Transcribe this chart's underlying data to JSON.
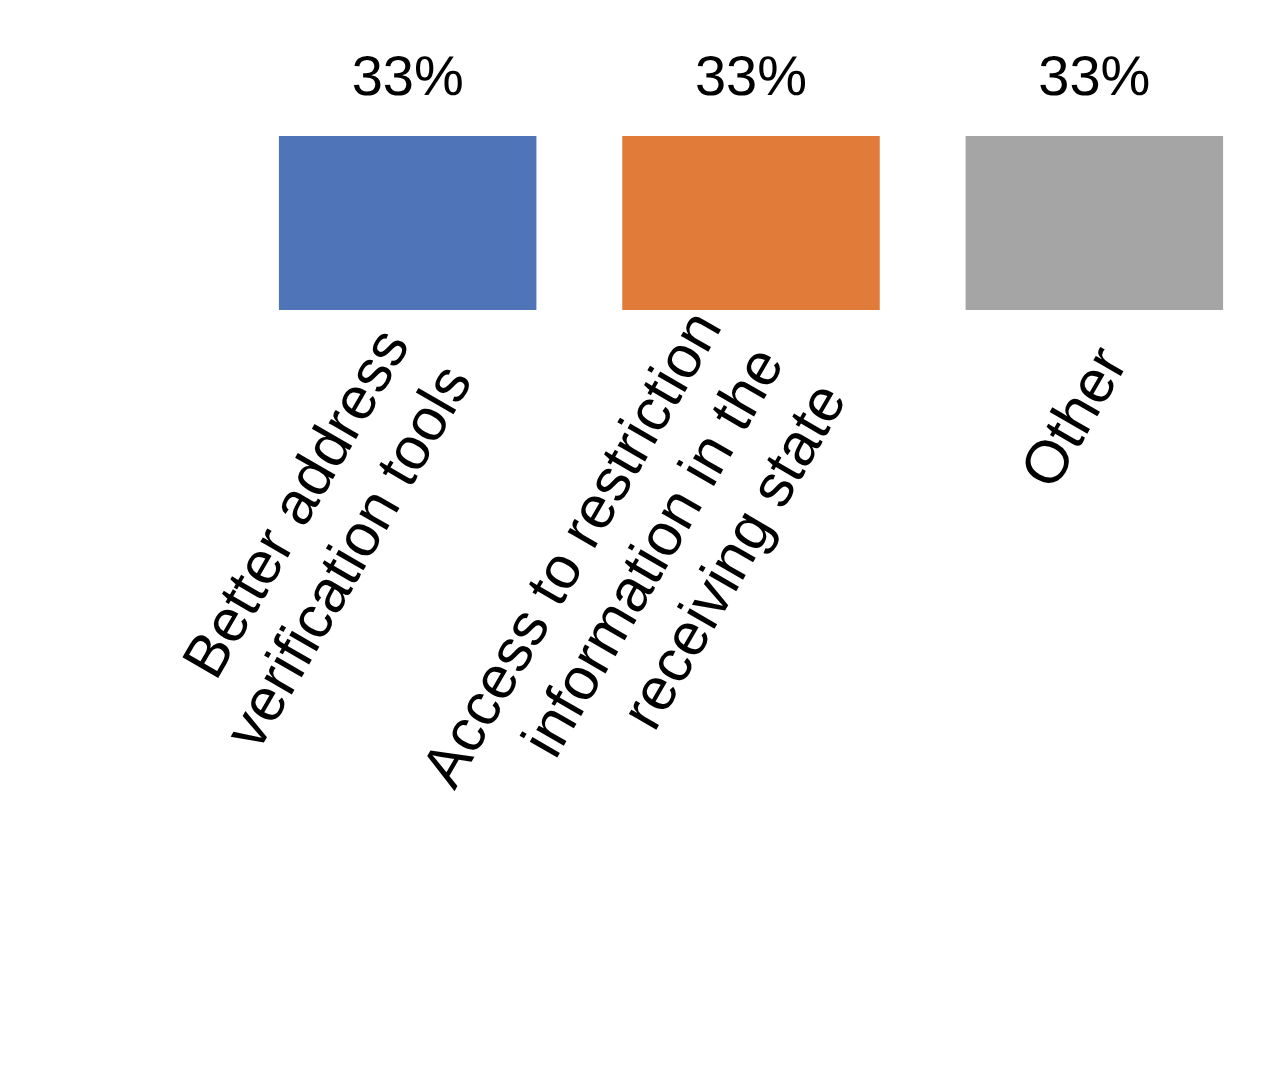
{
  "chart_data": {
    "type": "bar",
    "categories": [
      "Better address\nverification tools",
      "Access to restriction\ninformation in the\nreceiving state",
      "Other"
    ],
    "values": [
      33,
      33,
      33
    ],
    "colors": [
      "#4f74b8",
      "#e07b39",
      "#a5a5a5"
    ],
    "value_labels": [
      "33%",
      "33%",
      "33%"
    ],
    "grid": false,
    "legend": false
  }
}
